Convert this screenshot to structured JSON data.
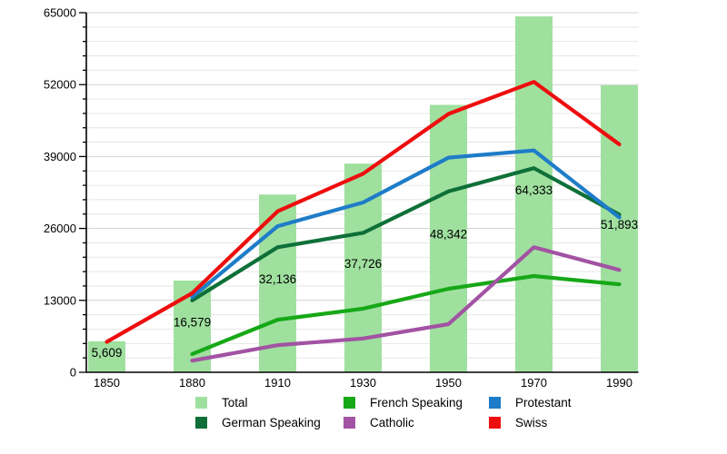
{
  "chart_data": {
    "type": "bar",
    "title": "",
    "xlabel": "",
    "ylabel": "",
    "categories": [
      "1850",
      "1880",
      "1910",
      "1930",
      "1950",
      "1970",
      "1990"
    ],
    "bar_series": {
      "name": "Total",
      "color": "#9fe09f",
      "values": [
        5609,
        16579,
        32136,
        37726,
        48342,
        64333,
        51893
      ],
      "labels": [
        "5,609",
        "16,579",
        "32,136",
        "37,726",
        "48,342",
        "64,333",
        "51,893"
      ]
    },
    "line_series": [
      {
        "name": "French Speaking",
        "color": "#17a817",
        "values": [
          null,
          3300,
          9500,
          11500,
          15100,
          17400,
          15900
        ]
      },
      {
        "name": "Catholic",
        "color": "#a353a3",
        "values": [
          null,
          2100,
          4900,
          6100,
          8700,
          22600,
          18500
        ]
      },
      {
        "name": "German Speaking",
        "color": "#0e7038",
        "values": [
          null,
          13000,
          22600,
          25200,
          32700,
          36900,
          28500
        ]
      },
      {
        "name": "Protestant",
        "color": "#1e7cc8",
        "values": [
          null,
          13600,
          26400,
          30700,
          38800,
          40100,
          28000
        ]
      },
      {
        "name": "Swiss",
        "color": "#ee0e0e",
        "values": [
          5500,
          14300,
          29100,
          35900,
          46700,
          52500,
          41200
        ]
      }
    ],
    "ylim": [
      0,
      65000
    ],
    "y_major_ticks": [
      0,
      13000,
      26000,
      39000,
      52000,
      65000
    ],
    "y_tick_labels": [
      "0",
      "13000",
      "26000",
      "39000",
      "52000",
      "65000"
    ],
    "y_minor_step": 2600,
    "grid": "horizontal",
    "legend_position": "bottom"
  },
  "legend": {
    "items": [
      {
        "label": "Total",
        "color": "#9fe09f"
      },
      {
        "label": "French Speaking",
        "color": "#17a817"
      },
      {
        "label": "Protestant",
        "color": "#1e7cc8"
      },
      {
        "label": "German Speaking",
        "color": "#0e7038"
      },
      {
        "label": "Catholic",
        "color": "#a353a3"
      },
      {
        "label": "Swiss",
        "color": "#ee0e0e"
      }
    ]
  },
  "colors": {
    "axis": "#000000",
    "grid_minor": "#e6e6e6",
    "grid_major": "#d2d2d2",
    "label_text": "#000000"
  }
}
